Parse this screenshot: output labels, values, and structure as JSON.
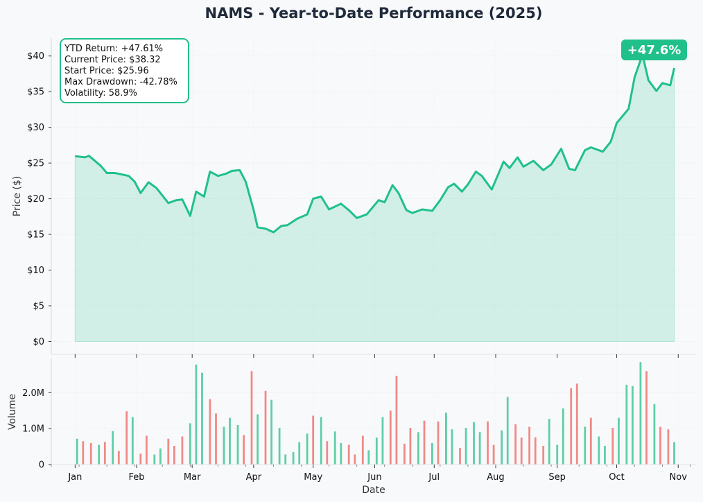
{
  "chart_data": {
    "type": "line",
    "title": "NAMS - Year-to-Date Performance (2025)",
    "colors": {
      "line": "#20c08a",
      "fill": "#20c08a",
      "up": "#5fcea6",
      "down": "#f08a86",
      "badge": "#20c08a",
      "text": "#1f2a3a"
    },
    "price_panel": {
      "ylabel": "Price ($)",
      "ylim": [
        -1.8,
        42.5
      ],
      "yticks": [
        0,
        5,
        10,
        15,
        20,
        25,
        30,
        35,
        40
      ],
      "ytick_labels": [
        "$0",
        "$5",
        "$10",
        "$15",
        "$20",
        "$25",
        "$30",
        "$35",
        "$40"
      ],
      "series": [
        {
          "x": [
            "2025-01-01",
            "2025-01-06",
            "2025-01-08",
            "2025-01-14",
            "2025-01-17",
            "2025-01-21",
            "2025-01-28",
            "2025-01-31",
            "2025-02-03",
            "2025-02-07",
            "2025-02-11",
            "2025-02-17",
            "2025-02-21",
            "2025-02-24",
            "2025-02-28",
            "2025-03-03",
            "2025-03-07",
            "2025-03-10",
            "2025-03-14",
            "2025-03-18",
            "2025-03-21",
            "2025-03-25",
            "2025-03-28",
            "2025-04-01",
            "2025-04-03",
            "2025-04-07",
            "2025-04-11",
            "2025-04-15",
            "2025-04-18",
            "2025-04-23",
            "2025-04-28",
            "2025-05-01",
            "2025-05-05",
            "2025-05-09",
            "2025-05-15",
            "2025-05-19",
            "2025-05-23",
            "2025-05-28",
            "2025-06-03",
            "2025-06-06",
            "2025-06-10",
            "2025-06-13",
            "2025-06-17",
            "2025-06-20",
            "2025-06-25",
            "2025-06-30",
            "2025-07-04",
            "2025-07-08",
            "2025-07-11",
            "2025-07-15",
            "2025-07-18",
            "2025-07-22",
            "2025-07-25",
            "2025-07-30",
            "2025-08-05",
            "2025-08-08",
            "2025-08-12",
            "2025-08-15",
            "2025-08-20",
            "2025-08-25",
            "2025-08-29",
            "2025-09-03",
            "2025-09-07",
            "2025-09-10",
            "2025-09-15",
            "2025-09-18",
            "2025-09-24",
            "2025-09-28",
            "2025-10-01",
            "2025-10-07",
            "2025-10-10",
            "2025-10-14",
            "2025-10-17",
            "2025-10-21",
            "2025-10-24",
            "2025-10-28",
            "2025-10-30"
          ],
          "values": [
            25.96,
            25.8,
            26.0,
            24.6,
            23.6,
            23.6,
            23.2,
            22.4,
            20.8,
            22.3,
            21.5,
            19.4,
            19.8,
            19.9,
            17.6,
            21.0,
            20.3,
            23.8,
            23.2,
            23.5,
            23.9,
            24.0,
            22.4,
            18.4,
            16.0,
            15.8,
            15.3,
            16.2,
            16.3,
            17.2,
            17.8,
            20.0,
            20.3,
            18.5,
            19.3,
            18.4,
            17.3,
            17.8,
            19.8,
            19.5,
            21.9,
            20.8,
            18.4,
            18.0,
            18.5,
            18.3,
            19.8,
            21.6,
            22.1,
            21.0,
            22.0,
            23.8,
            23.2,
            21.3,
            25.2,
            24.3,
            25.8,
            24.5,
            25.3,
            24.0,
            24.8,
            27.0,
            24.2,
            24.0,
            26.8,
            27.2,
            26.6,
            28.0,
            30.6,
            32.6,
            37.0,
            40.2,
            36.6,
            35.1,
            36.2,
            35.9,
            38.32
          ]
        }
      ]
    },
    "volume_panel": {
      "ylabel": "Volume",
      "ylim": [
        0,
        2.95
      ],
      "yticks": [
        0,
        1.0,
        2.0
      ],
      "ytick_labels": [
        "0",
        "1.0M",
        "2.0M"
      ],
      "series": [
        {
          "x": [
            "2025-01-02",
            "2025-01-05",
            "2025-01-09",
            "2025-01-13",
            "2025-01-16",
            "2025-01-20",
            "2025-01-23",
            "2025-01-27",
            "2025-01-30",
            "2025-02-03",
            "2025-02-06",
            "2025-02-10",
            "2025-02-13",
            "2025-02-17",
            "2025-02-20",
            "2025-02-24",
            "2025-02-28",
            "2025-03-03",
            "2025-03-06",
            "2025-03-10",
            "2025-03-13",
            "2025-03-17",
            "2025-03-20",
            "2025-03-24",
            "2025-03-27",
            "2025-03-31",
            "2025-04-03",
            "2025-04-07",
            "2025-04-10",
            "2025-04-14",
            "2025-04-17",
            "2025-04-21",
            "2025-04-24",
            "2025-04-28",
            "2025-05-01",
            "2025-05-05",
            "2025-05-08",
            "2025-05-12",
            "2025-05-15",
            "2025-05-19",
            "2025-05-22",
            "2025-05-26",
            "2025-05-29",
            "2025-06-02",
            "2025-06-05",
            "2025-06-09",
            "2025-06-12",
            "2025-06-16",
            "2025-06-19",
            "2025-06-23",
            "2025-06-26",
            "2025-06-30",
            "2025-07-03",
            "2025-07-07",
            "2025-07-10",
            "2025-07-14",
            "2025-07-17",
            "2025-07-21",
            "2025-07-24",
            "2025-07-28",
            "2025-07-31",
            "2025-08-04",
            "2025-08-07",
            "2025-08-11",
            "2025-08-14",
            "2025-08-18",
            "2025-08-21",
            "2025-08-25",
            "2025-08-28",
            "2025-09-01",
            "2025-09-04",
            "2025-09-08",
            "2025-09-11",
            "2025-09-15",
            "2025-09-18",
            "2025-09-22",
            "2025-09-25",
            "2025-09-29",
            "2025-10-02",
            "2025-10-06",
            "2025-10-09",
            "2025-10-13",
            "2025-10-16",
            "2025-10-20",
            "2025-10-23",
            "2025-10-27",
            "2025-10-30"
          ],
          "values": [
            0.72,
            0.65,
            0.6,
            0.55,
            0.63,
            0.93,
            0.38,
            1.48,
            1.32,
            0.3,
            0.8,
            0.28,
            0.45,
            0.72,
            0.52,
            0.78,
            1.15,
            2.78,
            2.55,
            1.82,
            1.42,
            1.05,
            1.3,
            1.1,
            0.82,
            2.6,
            1.4,
            2.05,
            1.8,
            1.02,
            0.28,
            0.35,
            0.62,
            0.86,
            1.36,
            1.32,
            0.65,
            0.92,
            0.6,
            0.55,
            0.28,
            0.8,
            0.4,
            0.75,
            1.32,
            1.5,
            2.47,
            0.58,
            1.02,
            0.9,
            1.22,
            0.6,
            1.2,
            1.44,
            0.98,
            0.46,
            1.02,
            1.18,
            0.9,
            1.2,
            0.55,
            0.95,
            1.88,
            1.12,
            0.75,
            1.05,
            0.76,
            0.52,
            1.27,
            0.55,
            1.56,
            2.12,
            2.25,
            1.05,
            1.3,
            0.78,
            0.52,
            1.02,
            1.3,
            2.22,
            2.18,
            2.85,
            2.6,
            1.68,
            1.05,
            0.98,
            0.62
          ],
          "direction": [
            "up",
            "down",
            "down",
            "up",
            "down",
            "up",
            "down",
            "down",
            "up",
            "down",
            "down",
            "up",
            "up",
            "down",
            "down",
            "down",
            "up",
            "up",
            "up",
            "down",
            "down",
            "up",
            "up",
            "up",
            "down",
            "down",
            "up",
            "down",
            "up",
            "up",
            "up",
            "up",
            "up",
            "up",
            "down",
            "up",
            "down",
            "up",
            "up",
            "down",
            "down",
            "down",
            "up",
            "up",
            "up",
            "down",
            "down",
            "down",
            "down",
            "up",
            "down",
            "up",
            "down",
            "up",
            "up",
            "down",
            "up",
            "up",
            "up",
            "down",
            "down",
            "up",
            "up",
            "down",
            "down",
            "down",
            "down",
            "down",
            "up",
            "up",
            "up",
            "down",
            "down",
            "up",
            "down",
            "up",
            "up",
            "down",
            "up",
            "up",
            "up",
            "up",
            "down",
            "up",
            "down",
            "down",
            "up"
          ]
        }
      ]
    },
    "xlabel": "Date",
    "xlim": [
      "2024-12-20",
      "2025-11-10"
    ],
    "xticks": [
      "2025-01-01",
      "2025-02-01",
      "2025-03-01",
      "2025-04-01",
      "2025-05-01",
      "2025-06-01",
      "2025-07-01",
      "2025-08-01",
      "2025-09-01",
      "2025-10-01",
      "2025-11-01"
    ],
    "xtick_labels": [
      "Jan",
      "Feb",
      "Mar",
      "Apr",
      "May",
      "Jun",
      "Jul",
      "Aug",
      "Sep",
      "Oct",
      "Nov"
    ],
    "grid": true,
    "stats_box": {
      "lines": [
        "YTD Return: +47.61%",
        "Current Price: $38.32",
        "Start Price: $25.96",
        "Max Drawdown: -42.78%",
        "Volatility: 58.9%"
      ],
      "placement": "top-left"
    },
    "end_badge": {
      "text": "+47.6%",
      "placement": "top-right"
    }
  }
}
